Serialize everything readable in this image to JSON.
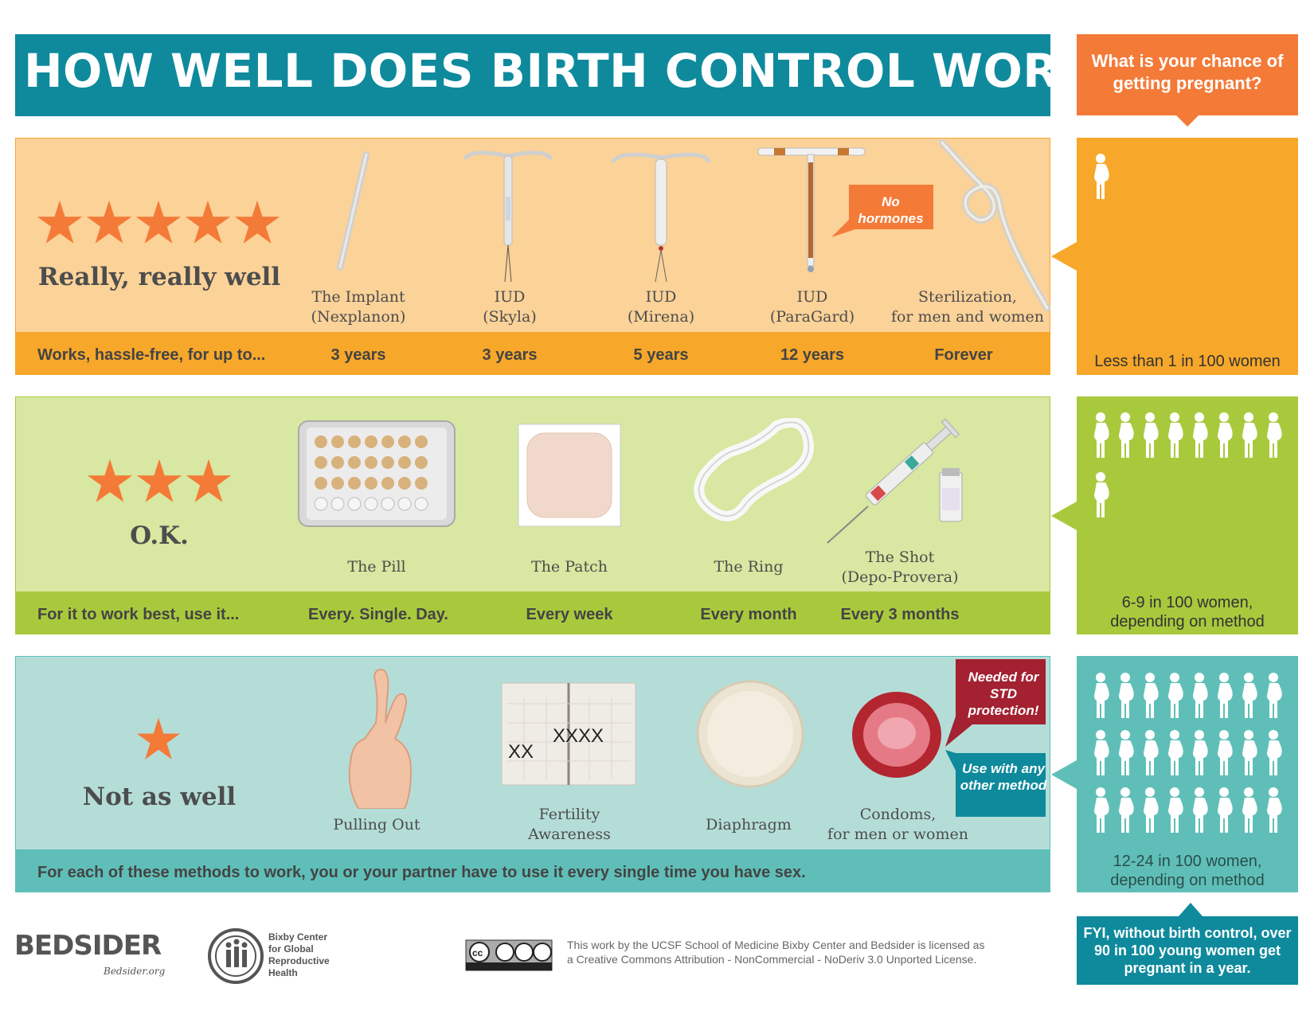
{
  "title": "HOW WELL DOES BIRTH CONTROL WORK?",
  "question": "What is your chance of getting pregnant?",
  "tiers": [
    {
      "rating": "Really, really well",
      "stars": 5,
      "band_label": "Works, hassle-free, for up to...",
      "methods": [
        {
          "name_line1": "The Implant",
          "name_line2": "(Nexplanon)",
          "value": "3 years"
        },
        {
          "name_line1": "IUD",
          "name_line2": "(Skyla)",
          "value": "3 years"
        },
        {
          "name_line1": "IUD",
          "name_line2": "(Mirena)",
          "value": "5 years"
        },
        {
          "name_line1": "IUD",
          "name_line2": "(ParaGard)",
          "value": "12 years"
        },
        {
          "name_line1": "Sterilization,",
          "name_line2": "for men and women",
          "value": "Forever"
        }
      ],
      "callout": "No hormones",
      "stat": "Less than 1 in 100 women",
      "figures": 1,
      "color": "#f7a729"
    },
    {
      "rating": "O.K.",
      "stars": 3,
      "band_label": "For it to work best, use it...",
      "methods": [
        {
          "name_line1": "The Pill",
          "name_line2": "",
          "value": "Every. Single. Day."
        },
        {
          "name_line1": "The Patch",
          "name_line2": "",
          "value": "Every week"
        },
        {
          "name_line1": "The Ring",
          "name_line2": "",
          "value": "Every month"
        },
        {
          "name_line1": "The Shot",
          "name_line2": "(Depo-Provera)",
          "value": "Every 3 months"
        }
      ],
      "stat_line1": "6-9 in 100 women,",
      "stat_line2": "depending on method",
      "figures": 9,
      "color": "#a9c93d"
    },
    {
      "rating": "Not as well",
      "stars": 1,
      "band_label": "For each of these methods to work, you or your partner have to use it every single time you have sex.",
      "methods": [
        {
          "name_line1": "Pulling Out",
          "name_line2": ""
        },
        {
          "name_line1": "Fertility",
          "name_line2": "Awareness"
        },
        {
          "name_line1": "Diaphragm",
          "name_line2": ""
        },
        {
          "name_line1": "Condoms,",
          "name_line2": "for men or women"
        }
      ],
      "callout_std": "Needed for STD protection!",
      "callout_other": "Use with any other method",
      "stat_line1": "12-24 in 100 women,",
      "stat_line2": "depending on method",
      "figures": 24,
      "color": "#5fbfb8"
    }
  ],
  "fyi": "FYI, without birth control, over 90 in 100 young women get pregnant in a year.",
  "footer": {
    "bedsider": "BEDSIDER",
    "bedsider_url": "Bedsider.org",
    "bixby_line1": "Bixby Center",
    "bixby_line2": "for Global",
    "bixby_line3": "Reproductive",
    "bixby_line4": "Health",
    "license_line1": "This work by the UCSF School of Medicine Bixby Center and Bedsider is licensed as",
    "license_line2": "a Creative Commons Attribution - NonCommercial - NoDeriv 3.0 Unported License."
  },
  "icons": [
    "star-icon",
    "pregnant-woman-icon",
    "implant-icon",
    "iud-icon",
    "sterilization-rope-icon",
    "pill-pack-icon",
    "patch-icon",
    "ring-icon",
    "syringe-icon",
    "crossed-fingers-icon",
    "calendar-icon",
    "diaphragm-icon",
    "condom-icon",
    "creative-commons-icon"
  ],
  "colors": {
    "title": "#0e8a9c",
    "orange": "#f47a38",
    "tier1": "#f7a729",
    "tier2": "#a9c93d",
    "tier3": "#5fbfb8",
    "std_callout": "#a32131"
  }
}
